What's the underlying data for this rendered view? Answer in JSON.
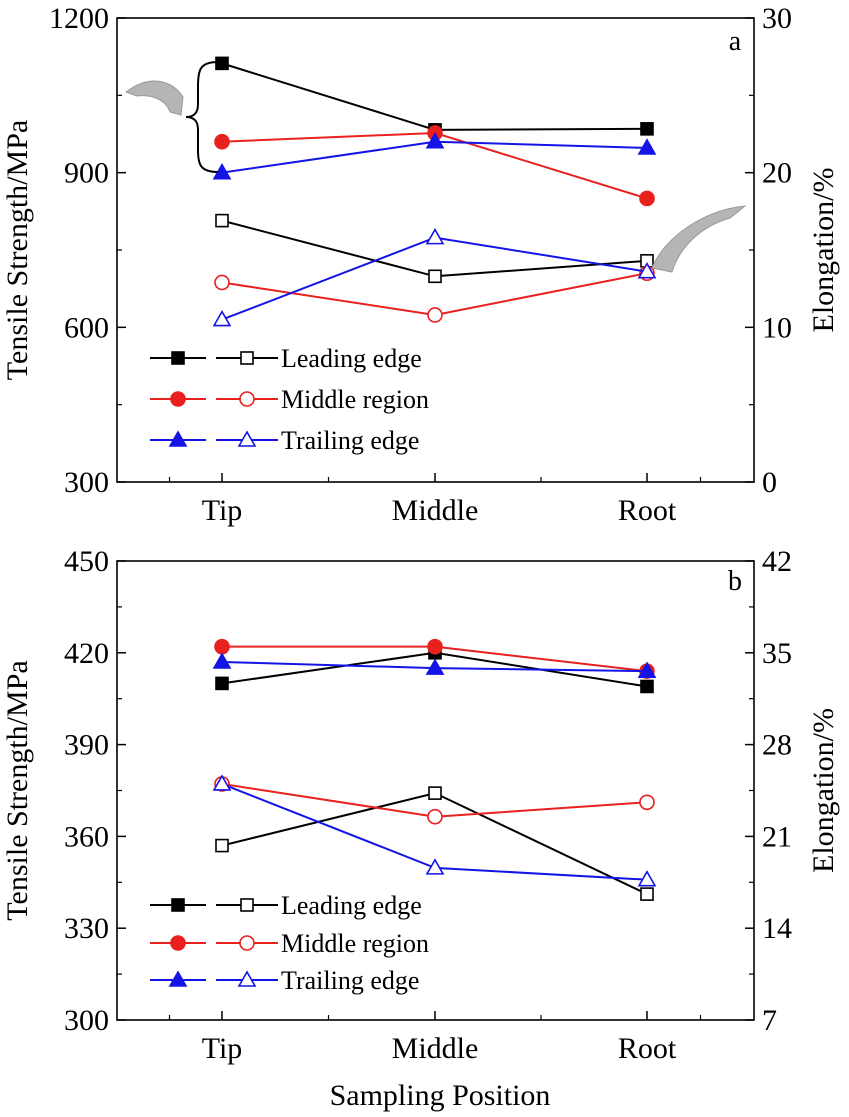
{
  "figure": {
    "xlabel": "Sampling Position"
  },
  "chart_data": [
    {
      "type": "line",
      "panel_label": "a",
      "categories": [
        "Tip",
        "Middle",
        "Root"
      ],
      "ylabel": "Tensile Strength/MPa",
      "y2label": "Elongation/%",
      "ylim": [
        300,
        1200
      ],
      "yticks": [
        "300",
        "600",
        "900",
        "1200"
      ],
      "y2lim": [
        0,
        30
      ],
      "y2ticks": [
        "0",
        "10",
        "20",
        "30"
      ],
      "legend_position": "lower-left",
      "legend": [
        {
          "label": "Leading edge",
          "color": "#000000",
          "marker": "square"
        },
        {
          "label": "Middle region",
          "color": "#e8201e",
          "marker": "circle"
        },
        {
          "label": "Trailing edge",
          "color": "#1414e6",
          "marker": "triangle"
        }
      ],
      "tensile_series": [
        {
          "name": "Leading edge",
          "axis": "left",
          "color": "#000000",
          "marker": "square",
          "filled": true,
          "values": [
            1112,
            983,
            985
          ]
        },
        {
          "name": "Middle region",
          "axis": "left",
          "color": "#e8201e",
          "marker": "circle",
          "filled": true,
          "values": [
            960,
            977,
            850
          ]
        },
        {
          "name": "Trailing edge",
          "axis": "left",
          "color": "#1414e6",
          "marker": "triangle",
          "filled": true,
          "values": [
            900,
            960,
            948
          ]
        }
      ],
      "elongation_series": [
        {
          "name": "Leading edge",
          "axis": "right",
          "color": "#000000",
          "marker": "square",
          "filled": false,
          "values": [
            16.9,
            13.3,
            14.3
          ]
        },
        {
          "name": "Middle region",
          "axis": "right",
          "color": "#e8201e",
          "marker": "circle",
          "filled": false,
          "values": [
            12.9,
            10.8,
            13.5
          ]
        },
        {
          "name": "Trailing edge",
          "axis": "right",
          "color": "#1414e6",
          "marker": "triangle",
          "filled": false,
          "values": [
            10.5,
            15.8,
            13.6
          ]
        }
      ]
    },
    {
      "type": "line",
      "panel_label": "b",
      "categories": [
        "Tip",
        "Middle",
        "Root"
      ],
      "ylabel": "Tensile Strength/MPa",
      "y2label": "Elongation/%",
      "ylim": [
        300,
        450
      ],
      "yticks": [
        "300",
        "330",
        "360",
        "390",
        "420",
        "450"
      ],
      "y2lim": [
        7,
        42
      ],
      "y2ticks": [
        "7",
        "14",
        "21",
        "28",
        "35",
        "42"
      ],
      "legend_position": "lower-left",
      "legend": [
        {
          "label": "Leading edge",
          "color": "#000000",
          "marker": "square"
        },
        {
          "label": "Middle region",
          "color": "#e8201e",
          "marker": "circle"
        },
        {
          "label": "Trailing edge",
          "color": "#1414e6",
          "marker": "triangle"
        }
      ],
      "tensile_series": [
        {
          "name": "Leading edge",
          "axis": "left",
          "color": "#000000",
          "marker": "square",
          "filled": true,
          "values": [
            410,
            420,
            409
          ]
        },
        {
          "name": "Middle region",
          "axis": "left",
          "color": "#e8201e",
          "marker": "circle",
          "filled": true,
          "values": [
            422,
            422,
            414
          ]
        },
        {
          "name": "Trailing edge",
          "axis": "left",
          "color": "#1414e6",
          "marker": "triangle",
          "filled": true,
          "values": [
            417,
            415,
            414
          ]
        }
      ],
      "elongation_series": [
        {
          "name": "Leading edge",
          "axis": "right",
          "color": "#000000",
          "marker": "square",
          "filled": false,
          "values": [
            20.3,
            24.3,
            16.6
          ]
        },
        {
          "name": "Middle region",
          "axis": "right",
          "color": "#e8201e",
          "marker": "circle",
          "filled": false,
          "values": [
            25.0,
            22.5,
            23.6
          ]
        },
        {
          "name": "Trailing edge",
          "axis": "right",
          "color": "#1414e6",
          "marker": "triangle",
          "filled": false,
          "values": [
            25.0,
            18.6,
            17.7
          ]
        }
      ]
    }
  ]
}
